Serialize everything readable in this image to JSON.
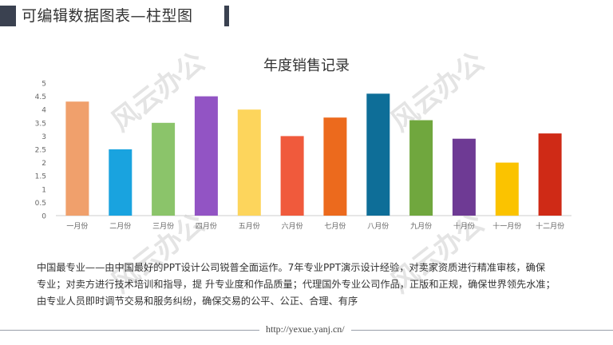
{
  "header": {
    "title": "可编辑数据图表—柱型图"
  },
  "watermark": {
    "text": "风云办公"
  },
  "chart_data": {
    "type": "bar",
    "title": "年度销售记录",
    "categories": [
      "一月份",
      "二月份",
      "三月份",
      "四月份",
      "五月份",
      "六月份",
      "七月份",
      "八月份",
      "九月份",
      "十月份",
      "十一月份",
      "十二月份"
    ],
    "values": [
      4.3,
      2.5,
      3.5,
      4.5,
      4.0,
      3.0,
      3.7,
      4.6,
      3.6,
      2.9,
      2.0,
      3.1
    ],
    "colors": [
      "#f0a06c",
      "#19a3df",
      "#8bc46a",
      "#9254c4",
      "#fdd55c",
      "#f05a3c",
      "#ec6a1d",
      "#0e6e98",
      "#70a73e",
      "#6e3a94",
      "#fbc300",
      "#cf2a16"
    ],
    "yticks": [
      "0",
      "0.5",
      "1",
      "1.5",
      "2",
      "2.5",
      "3",
      "3.5",
      "4",
      "4.5",
      "5"
    ],
    "ylim": [
      0,
      5
    ],
    "xlabel": "",
    "ylabel": "",
    "grid": false,
    "legend": "none"
  },
  "description": {
    "lines": [
      "中国最专业——由中国最好的PPT设计公司锐普全面运作。7年专业PPT演示设计经验，对卖家资质进行精准审核，确保",
      "专业；对卖方进行技术培训和指导，提 升专业度和作品质量；代理国外专业公司作品，正版和正规，确保世界领先水准；",
      "由专业人员即时调节交易和服务纠纷，确保交易的公平、公正、合理、有序"
    ]
  },
  "footer": {
    "url": "http://yexue.yanj.cn/"
  }
}
